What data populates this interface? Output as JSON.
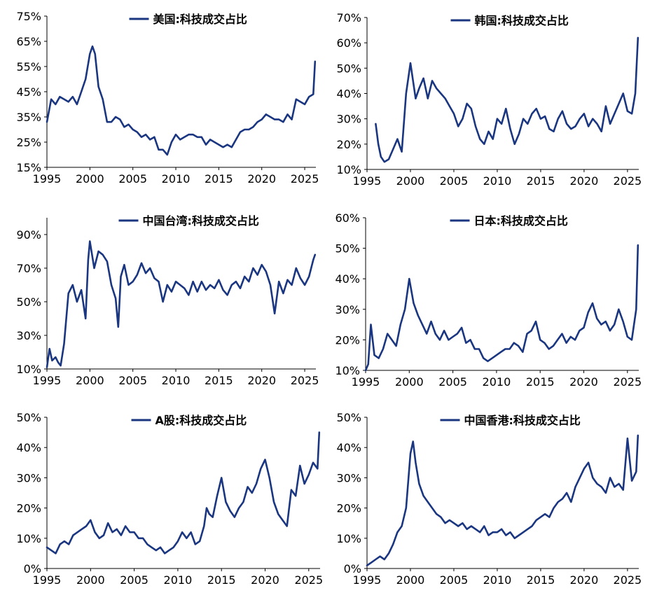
{
  "chart_data": [
    {
      "type": "line",
      "title": "",
      "xlabel": "",
      "ylabel": "",
      "xlim": [
        1995,
        2026.3
      ],
      "ylim": [
        15,
        75
      ],
      "yticks": [
        15,
        25,
        35,
        45,
        55,
        65,
        75
      ],
      "ytick_labels": [
        "15%",
        "25%",
        "35%",
        "45%",
        "55%",
        "65%",
        "75%"
      ],
      "xticks": [
        1995,
        2000,
        2005,
        2010,
        2015,
        2020,
        2025
      ],
      "xtick_labels": [
        "1995",
        "2000",
        "2005",
        "2010",
        "2015",
        "2020",
        "2025"
      ],
      "legend_position": "top",
      "color": "#1a3680",
      "series": [
        {
          "name": "美国:科技成交占比",
          "x": [
            1995.0,
            1995.5,
            1996.0,
            1996.5,
            1997.0,
            1997.5,
            1998.0,
            1998.5,
            1999.0,
            1999.5,
            2000.0,
            2000.3,
            2000.6,
            2001.0,
            2001.5,
            2002.0,
            2002.5,
            2003.0,
            2003.5,
            2004.0,
            2004.5,
            2005.0,
            2005.5,
            2006.0,
            2006.5,
            2007.0,
            2007.5,
            2008.0,
            2008.5,
            2009.0,
            2009.5,
            2010.0,
            2010.5,
            2011.0,
            2011.5,
            2012.0,
            2012.5,
            2013.0,
            2013.5,
            2014.0,
            2014.5,
            2015.0,
            2015.5,
            2016.0,
            2016.5,
            2017.0,
            2017.5,
            2018.0,
            2018.5,
            2019.0,
            2019.5,
            2020.0,
            2020.5,
            2021.0,
            2021.5,
            2022.0,
            2022.5,
            2023.0,
            2023.5,
            2024.0,
            2024.5,
            2025.0,
            2025.5,
            2026.0,
            2026.2
          ],
          "y": [
            33,
            42,
            40,
            43,
            42,
            41,
            43,
            40,
            45,
            50,
            60,
            63,
            60,
            47,
            42,
            33,
            33,
            35,
            34,
            31,
            32,
            30,
            29,
            27,
            28,
            26,
            27,
            22,
            22,
            20,
            25,
            28,
            26,
            27,
            28,
            28,
            27,
            27,
            24,
            26,
            25,
            24,
            23,
            24,
            23,
            26,
            29,
            30,
            30,
            31,
            33,
            34,
            36,
            35,
            34,
            34,
            33,
            36,
            34,
            42,
            41,
            40,
            43,
            44,
            57
          ]
        }
      ]
    },
    {
      "type": "line",
      "title": "",
      "xlabel": "",
      "ylabel": "",
      "xlim": [
        1995,
        2026.3
      ],
      "ylim": [
        10,
        70
      ],
      "yticks": [
        10,
        20,
        30,
        40,
        50,
        60,
        70
      ],
      "ytick_labels": [
        "10%",
        "20%",
        "30%",
        "40%",
        "50%",
        "60%",
        "70%"
      ],
      "xticks": [
        1995,
        2000,
        2005,
        2010,
        2015,
        2020,
        2025
      ],
      "xtick_labels": [
        "1995",
        "2000",
        "2005",
        "2010",
        "2015",
        "2020",
        "2025"
      ],
      "legend_position": "top",
      "color": "#1a3680",
      "series": [
        {
          "name": "韩国:科技成交占比",
          "x": [
            1996.0,
            1996.3,
            1996.6,
            1997.0,
            1997.5,
            1998.0,
            1998.5,
            1999.0,
            1999.5,
            2000.0,
            2000.3,
            2000.6,
            2001.0,
            2001.5,
            2002.0,
            2002.5,
            2003.0,
            2003.5,
            2004.0,
            2004.5,
            2005.0,
            2005.5,
            2006.0,
            2006.5,
            2007.0,
            2007.5,
            2008.0,
            2008.5,
            2009.0,
            2009.5,
            2010.0,
            2010.5,
            2011.0,
            2011.5,
            2012.0,
            2012.5,
            2013.0,
            2013.5,
            2014.0,
            2014.5,
            2015.0,
            2015.5,
            2016.0,
            2016.5,
            2017.0,
            2017.5,
            2018.0,
            2018.5,
            2019.0,
            2019.5,
            2020.0,
            2020.5,
            2021.0,
            2021.5,
            2022.0,
            2022.5,
            2023.0,
            2023.5,
            2024.0,
            2024.5,
            2025.0,
            2025.5,
            2025.9,
            2026.2
          ],
          "y": [
            28,
            20,
            15,
            13,
            14,
            18,
            22,
            17,
            40,
            52,
            45,
            38,
            42,
            46,
            38,
            45,
            42,
            40,
            38,
            35,
            32,
            27,
            30,
            36,
            34,
            27,
            22,
            20,
            25,
            22,
            30,
            28,
            34,
            26,
            20,
            24,
            30,
            28,
            32,
            34,
            30,
            31,
            26,
            25,
            30,
            33,
            28,
            26,
            27,
            30,
            32,
            27,
            30,
            28,
            25,
            35,
            28,
            32,
            36,
            40,
            33,
            32,
            40,
            62
          ]
        }
      ]
    },
    {
      "type": "line",
      "title": "",
      "xlabel": "",
      "ylabel": "",
      "xlim": [
        1995,
        2026.3
      ],
      "ylim": [
        10,
        100
      ],
      "yticks": [
        10,
        30,
        50,
        70,
        90
      ],
      "ytick_labels": [
        "10%",
        "30%",
        "50%",
        "70%",
        "90%"
      ],
      "xticks": [
        1995,
        2000,
        2005,
        2010,
        2015,
        2020,
        2025
      ],
      "xtick_labels": [
        "1995",
        "2000",
        "2005",
        "2010",
        "2015",
        "2020",
        "2025"
      ],
      "legend_position": "top",
      "color": "#1a3680",
      "series": [
        {
          "name": "中国台湾:科技成交占比",
          "x": [
            1995.0,
            1995.3,
            1995.6,
            1996.0,
            1996.3,
            1996.6,
            1997.0,
            1997.5,
            1998.0,
            1998.5,
            1999.0,
            1999.5,
            1999.8,
            2000.0,
            2000.5,
            2001.0,
            2001.5,
            2002.0,
            2002.5,
            2003.0,
            2003.3,
            2003.6,
            2004.0,
            2004.5,
            2005.0,
            2005.5,
            2006.0,
            2006.5,
            2007.0,
            2007.5,
            2008.0,
            2008.5,
            2009.0,
            2009.5,
            2010.0,
            2010.5,
            2011.0,
            2011.5,
            2012.0,
            2012.5,
            2013.0,
            2013.5,
            2014.0,
            2014.5,
            2015.0,
            2015.5,
            2016.0,
            2016.5,
            2017.0,
            2017.5,
            2018.0,
            2018.5,
            2019.0,
            2019.5,
            2020.0,
            2020.5,
            2021.0,
            2021.5,
            2022.0,
            2022.5,
            2023.0,
            2023.5,
            2024.0,
            2024.5,
            2025.0,
            2025.5,
            2026.0,
            2026.2
          ],
          "y": [
            11,
            22,
            15,
            17,
            14,
            12,
            25,
            55,
            60,
            50,
            57,
            40,
            75,
            86,
            70,
            80,
            78,
            74,
            60,
            52,
            35,
            65,
            72,
            60,
            62,
            66,
            73,
            67,
            70,
            64,
            62,
            50,
            60,
            56,
            62,
            60,
            58,
            54,
            62,
            56,
            62,
            57,
            60,
            58,
            63,
            57,
            54,
            60,
            62,
            58,
            65,
            62,
            70,
            66,
            72,
            68,
            60,
            43,
            62,
            55,
            63,
            60,
            70,
            64,
            60,
            65,
            75,
            78
          ]
        }
      ]
    },
    {
      "type": "line",
      "title": "",
      "xlabel": "",
      "ylabel": "",
      "xlim": [
        1995,
        2026.3
      ],
      "ylim": [
        10,
        60
      ],
      "yticks": [
        10,
        20,
        30,
        40,
        50,
        60
      ],
      "ytick_labels": [
        "10%",
        "20%",
        "30%",
        "40%",
        "50%",
        "60%"
      ],
      "xticks": [
        1995,
        2000,
        2005,
        2010,
        2015,
        2020,
        2025
      ],
      "xtick_labels": [
        "1995",
        "2000",
        "2005",
        "2010",
        "2015",
        "2020",
        "2025"
      ],
      "legend_position": "top",
      "color": "#1a3680",
      "series": [
        {
          "name": "日本:科技成交占比",
          "x": [
            1995.0,
            1995.3,
            1995.6,
            1996.0,
            1996.5,
            1997.0,
            1997.5,
            1998.0,
            1998.5,
            1999.0,
            1999.5,
            2000.0,
            2000.5,
            2001.0,
            2001.5,
            2002.0,
            2002.5,
            2003.0,
            2003.5,
            2004.0,
            2004.5,
            2005.0,
            2005.5,
            2006.0,
            2006.5,
            2007.0,
            2007.5,
            2008.0,
            2008.5,
            2009.0,
            2009.5,
            2010.0,
            2010.5,
            2011.0,
            2011.5,
            2012.0,
            2012.5,
            2013.0,
            2013.5,
            2014.0,
            2014.5,
            2015.0,
            2015.5,
            2016.0,
            2016.5,
            2017.0,
            2017.5,
            2018.0,
            2018.5,
            2019.0,
            2019.5,
            2020.0,
            2020.5,
            2021.0,
            2021.5,
            2022.0,
            2022.5,
            2023.0,
            2023.5,
            2024.0,
            2024.5,
            2025.0,
            2025.5,
            2026.0,
            2026.2
          ],
          "y": [
            10,
            12,
            25,
            15,
            14,
            17,
            22,
            20,
            18,
            25,
            30,
            40,
            32,
            28,
            25,
            22,
            26,
            22,
            20,
            23,
            20,
            21,
            22,
            24,
            19,
            20,
            17,
            17,
            14,
            13,
            14,
            15,
            16,
            17,
            17,
            19,
            18,
            16,
            22,
            23,
            26,
            20,
            19,
            17,
            18,
            20,
            22,
            19,
            21,
            20,
            23,
            24,
            29,
            32,
            27,
            25,
            26,
            23,
            25,
            30,
            26,
            21,
            20,
            30,
            51
          ]
        }
      ]
    },
    {
      "type": "line",
      "title": "",
      "xlabel": "",
      "ylabel": "",
      "xlim": [
        1995,
        2026.3
      ],
      "ylim": [
        0,
        50
      ],
      "yticks": [
        0,
        10,
        20,
        30,
        40,
        50
      ],
      "ytick_labels": [
        "0%",
        "10%",
        "20%",
        "30%",
        "40%",
        "50%"
      ],
      "xticks": [
        1995,
        2000,
        2005,
        2010,
        2015,
        2020,
        2025
      ],
      "xtick_labels": [
        "1995",
        "2000",
        "2005",
        "2010",
        "2015",
        "2020",
        "2025"
      ],
      "legend_position": "top",
      "color": "#1a3680",
      "series": [
        {
          "name": "A股:科技成交占比",
          "x": [
            1995.0,
            1995.5,
            1996.0,
            1996.5,
            1997.0,
            1997.5,
            1998.0,
            1998.5,
            1999.0,
            1999.5,
            2000.0,
            2000.5,
            2001.0,
            2001.5,
            2002.0,
            2002.5,
            2003.0,
            2003.5,
            2004.0,
            2004.5,
            2005.0,
            2005.5,
            2006.0,
            2006.5,
            2007.0,
            2007.5,
            2008.0,
            2008.5,
            2009.0,
            2009.5,
            2010.0,
            2010.5,
            2011.0,
            2011.5,
            2012.0,
            2012.5,
            2013.0,
            2013.3,
            2013.6,
            2014.0,
            2014.5,
            2015.0,
            2015.5,
            2016.0,
            2016.5,
            2017.0,
            2017.5,
            2018.0,
            2018.5,
            2019.0,
            2019.5,
            2020.0,
            2020.5,
            2021.0,
            2021.5,
            2022.0,
            2022.5,
            2023.0,
            2023.5,
            2024.0,
            2024.5,
            2025.0,
            2025.5,
            2026.0,
            2026.2
          ],
          "y": [
            7,
            6,
            5,
            8,
            9,
            8,
            11,
            12,
            13,
            14,
            16,
            12,
            10,
            11,
            15,
            12,
            13,
            11,
            14,
            12,
            12,
            10,
            10,
            8,
            7,
            6,
            7,
            5,
            6,
            7,
            9,
            12,
            10,
            12,
            8,
            9,
            14,
            20,
            18,
            17,
            24,
            30,
            22,
            19,
            17,
            20,
            22,
            27,
            25,
            28,
            33,
            36,
            30,
            22,
            18,
            16,
            14,
            26,
            24,
            34,
            28,
            31,
            35,
            33,
            45
          ]
        }
      ]
    },
    {
      "type": "line",
      "title": "",
      "xlabel": "",
      "ylabel": "",
      "xlim": [
        1995,
        2026.3
      ],
      "ylim": [
        0,
        50
      ],
      "yticks": [
        0,
        10,
        20,
        30,
        40,
        50
      ],
      "ytick_labels": [
        "0%",
        "10%",
        "20%",
        "30%",
        "40%",
        "50%"
      ],
      "xticks": [
        1995,
        2000,
        2005,
        2010,
        2015,
        2020,
        2025
      ],
      "xtick_labels": [
        "1995",
        "2000",
        "2005",
        "2010",
        "2015",
        "2020",
        "2025"
      ],
      "legend_position": "top",
      "color": "#1a3680",
      "series": [
        {
          "name": "中国香港:科技成交占比",
          "x": [
            1995.0,
            1995.5,
            1996.0,
            1996.5,
            1997.0,
            1997.5,
            1998.0,
            1998.5,
            1999.0,
            1999.5,
            2000.0,
            2000.3,
            2000.6,
            2001.0,
            2001.5,
            2002.0,
            2002.5,
            2003.0,
            2003.5,
            2004.0,
            2004.5,
            2005.0,
            2005.5,
            2006.0,
            2006.5,
            2007.0,
            2007.5,
            2008.0,
            2008.5,
            2009.0,
            2009.5,
            2010.0,
            2010.5,
            2011.0,
            2011.5,
            2012.0,
            2012.5,
            2013.0,
            2013.5,
            2014.0,
            2014.5,
            2015.0,
            2015.5,
            2016.0,
            2016.5,
            2017.0,
            2017.5,
            2018.0,
            2018.5,
            2019.0,
            2019.5,
            2020.0,
            2020.5,
            2021.0,
            2021.5,
            2022.0,
            2022.5,
            2023.0,
            2023.5,
            2024.0,
            2024.5,
            2025.0,
            2025.5,
            2026.0,
            2026.2
          ],
          "y": [
            1,
            2,
            3,
            4,
            3,
            5,
            8,
            12,
            14,
            20,
            38,
            42,
            35,
            28,
            24,
            22,
            20,
            18,
            17,
            15,
            16,
            15,
            14,
            15,
            13,
            14,
            13,
            12,
            14,
            11,
            12,
            12,
            13,
            11,
            12,
            10,
            11,
            12,
            13,
            14,
            16,
            17,
            18,
            17,
            20,
            22,
            23,
            25,
            22,
            27,
            30,
            33,
            35,
            30,
            28,
            27,
            25,
            30,
            27,
            28,
            26,
            43,
            29,
            32,
            44
          ]
        }
      ]
    }
  ]
}
